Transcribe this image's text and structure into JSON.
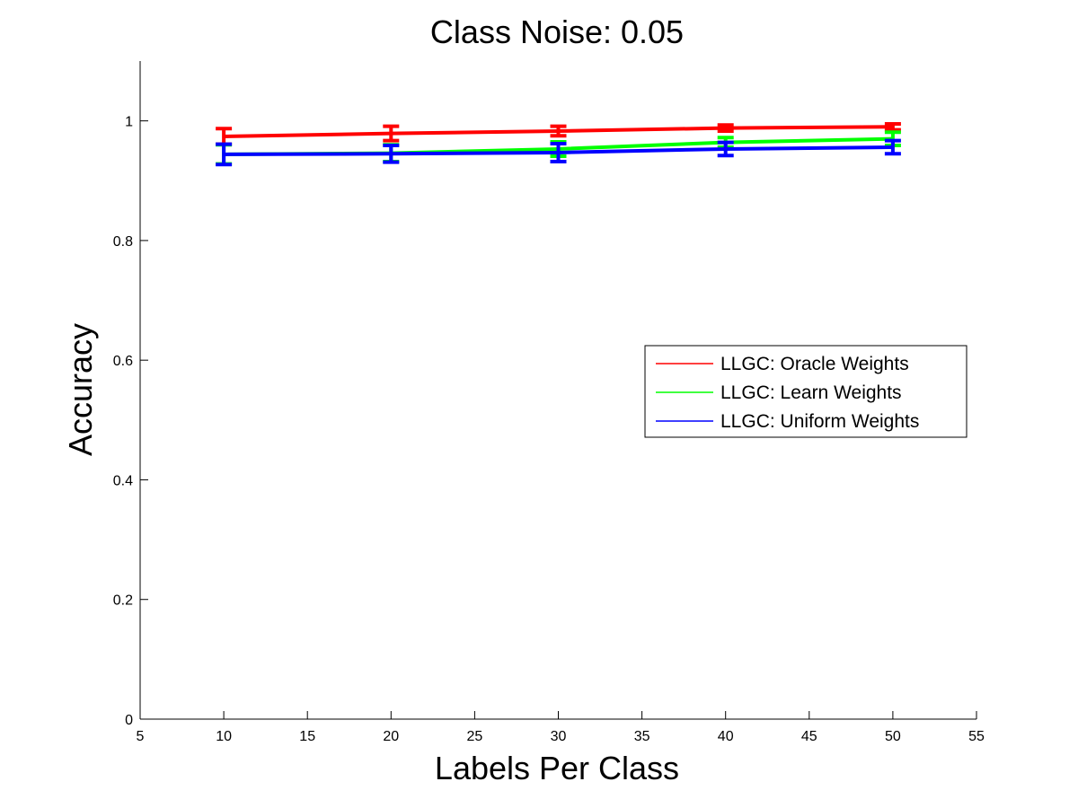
{
  "chart_data": {
    "type": "line",
    "title": "Class Noise: 0.05",
    "xlabel": "Labels Per Class",
    "ylabel": "Accuracy",
    "xlim": [
      5,
      55
    ],
    "ylim": [
      0,
      1.1
    ],
    "xticks": [
      "5",
      "10",
      "15",
      "20",
      "25",
      "30",
      "35",
      "40",
      "45",
      "50",
      "55"
    ],
    "yticks": [
      "0",
      "0.2",
      "0.4",
      "0.6",
      "0.8",
      "1"
    ],
    "x": [
      10,
      20,
      30,
      40,
      50
    ],
    "grid": false,
    "legend_position": "center-right",
    "series": [
      {
        "name": "LLGC: Oracle Weights",
        "color": "#ff0000",
        "values": [
          0.974,
          0.979,
          0.983,
          0.988,
          0.99
        ],
        "errors": [
          0.013,
          0.012,
          0.008,
          0.005,
          0.005
        ]
      },
      {
        "name": "LLGC: Learn Weights",
        "color": "#00ff00",
        "values": [
          0.944,
          0.946,
          0.953,
          0.964,
          0.97
        ],
        "errors": [
          0.016,
          0.014,
          0.012,
          0.008,
          0.011
        ]
      },
      {
        "name": "LLGC: Uniform Weights",
        "color": "#0000ff",
        "values": [
          0.944,
          0.945,
          0.947,
          0.953,
          0.956
        ],
        "errors": [
          0.017,
          0.014,
          0.015,
          0.011,
          0.011
        ]
      }
    ]
  }
}
